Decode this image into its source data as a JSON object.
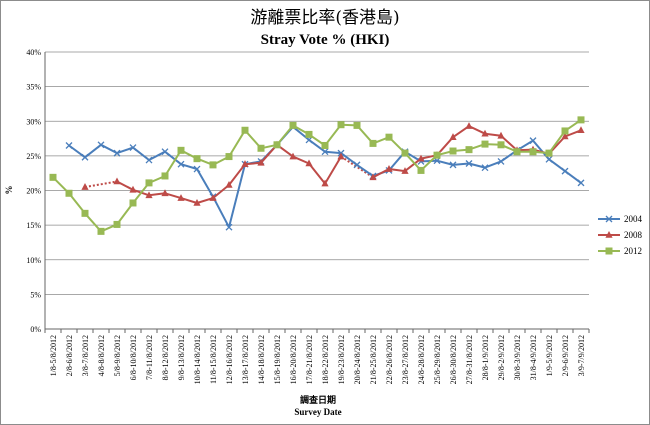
{
  "chart_data": {
    "type": "line",
    "title": "游離票比率(香港島)",
    "subtitle": "Stray Vote % (HKI)",
    "xlabel": "調查日期",
    "xlabel_en": "Survey Date",
    "ylabel": "%",
    "ylim": [
      0,
      40
    ],
    "yticks": [
      "0%",
      "5%",
      "10%",
      "15%",
      "20%",
      "25%",
      "30%",
      "35%",
      "40%"
    ],
    "grid": "horizontal",
    "legend_position": "right",
    "categories": [
      "1/8-5/8/2012",
      "2/8-6/8/2012",
      "3/8-7/8/2012",
      "4/8-8/8/2012",
      "5/8-9/8/2012",
      "6/8-10/8/2012",
      "7/8-11/8/2012",
      "8/8-12/8/2012",
      "9/8-13/8/2012",
      "10/8-14/8/2012",
      "11/8-15/8/2012",
      "12/8-16/8/2012",
      "13/8-17/8/2012",
      "14/8-18/8/2012",
      "15/8-19/8/2012",
      "16/8-20/8/2012",
      "17/8-21/8/2012",
      "18/8-22/8/2012",
      "19/8-23/8/2012",
      "20/8-24/8/2012",
      "21/8-25/8/2012",
      "22/8-26/8/2012",
      "23/8-27/8/2012",
      "24/8-28/8/2012",
      "25/8-29/8/2012",
      "26/8-30/8/2012",
      "27/8-31/8/2012",
      "28/8-1/9/2012",
      "29/8-2/9/2012",
      "30/8-3/9/2012",
      "31/8-4/9/2012",
      "1/9-5/9/2012",
      "2/9-6/9/2012",
      "3/9-7/9/2012"
    ],
    "series": [
      {
        "name": "2004",
        "color": "#4a7ebb",
        "marker": "x",
        "values": [
          null,
          26.5,
          24.8,
          26.6,
          25.4,
          26.2,
          24.4,
          25.6,
          23.8,
          23.1,
          19.1,
          14.7,
          23.8,
          24.2,
          26.6,
          29.2,
          27.3,
          25.6,
          25.4,
          23.7,
          22.1,
          22.9,
          25.6,
          24.2,
          24.3,
          23.7,
          23.9,
          23.3,
          24.2,
          25.8,
          27.2,
          24.5,
          22.8,
          21.1
        ]
      },
      {
        "name": "2008",
        "color": "#be4b48",
        "marker": "triangle",
        "values": [
          null,
          null,
          20.5,
          null,
          21.3,
          20.1,
          19.3,
          19.6,
          18.9,
          18.2,
          18.9,
          20.8,
          23.8,
          24.0,
          26.6,
          24.9,
          23.9,
          21.0,
          24.9,
          null,
          21.9,
          23.1,
          22.8,
          24.6,
          25.1,
          27.7,
          29.3,
          28.2,
          27.9,
          25.8,
          25.9,
          25.3,
          27.8,
          28.7
        ]
      },
      {
        "name": "2012",
        "color": "#98b954",
        "marker": "square",
        "values": [
          21.9,
          19.6,
          16.7,
          14.1,
          15.1,
          18.2,
          21.1,
          22.1,
          25.8,
          24.6,
          23.7,
          24.9,
          28.7,
          26.1,
          26.6,
          29.4,
          28.1,
          26.5,
          29.5,
          29.4,
          26.8,
          27.7,
          25.4,
          22.9,
          25.1,
          25.7,
          25.9,
          26.7,
          26.6,
          25.6,
          25.6,
          25.4,
          28.6,
          30.2
        ]
      }
    ],
    "dotted_gaps": [
      {
        "series": "2008",
        "from": "3/8-7/8/2012",
        "to": "5/8-9/8/2012"
      },
      {
        "series": "2008",
        "from": "19/8-23/8/2012",
        "to": "21/8-25/8/2012"
      }
    ]
  }
}
